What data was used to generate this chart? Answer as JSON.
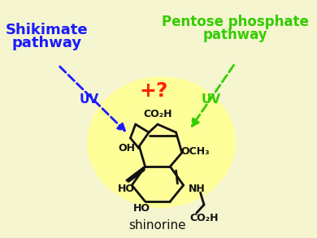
{
  "bg_color": "#f5f5d0",
  "glow_color": "#ffff99",
  "title": "Shikimate pathway",
  "title2": "Pentose phosphate\npathway",
  "label_shikimate": "Shikimate\npathway",
  "label_pentose": "Pentose phosphate\npathway",
  "label_uv_left": "UV",
  "label_uv_right": "UV",
  "label_plus": "+?",
  "label_shinorine": "shinorine",
  "blue": "#1a1aff",
  "green": "#33cc00",
  "red": "#ff2200",
  "black": "#111111"
}
